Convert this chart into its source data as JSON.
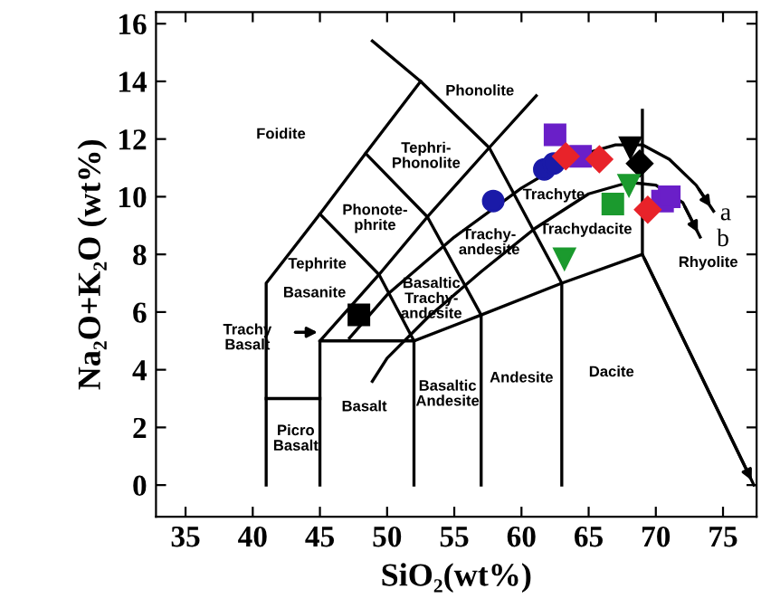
{
  "chart_data": {
    "type": "scatter",
    "xlabel": "SiO₂(wt%)",
    "ylabel": "Na₂O+K₂O (wt%)",
    "xlim": [
      32.8,
      77.5
    ],
    "ylim": [
      -1.1,
      16.4
    ],
    "xticks": [
      35,
      40,
      45,
      50,
      55,
      60,
      65,
      70,
      75
    ],
    "yticks": [
      0,
      2,
      4,
      6,
      8,
      10,
      12,
      14,
      16
    ],
    "grid": false,
    "legend": false,
    "series": [
      {
        "type": "line",
        "color": "#000000",
        "marker": "none",
        "x": [
          41,
          41,
          45,
          48.4,
          52.5
        ],
        "values": [
          0,
          7,
          9.4,
          11.5,
          14
        ]
      },
      {
        "type": "line",
        "color": "#000000",
        "marker": "none",
        "x": [
          48.9,
          52.5,
          57.6,
          63,
          63
        ],
        "values": [
          15.4,
          14,
          11.7,
          7,
          0
        ]
      },
      {
        "type": "line",
        "color": "#000000",
        "marker": "none",
        "x": [
          41,
          45
        ],
        "values": [
          3,
          3
        ]
      },
      {
        "type": "line",
        "color": "#000000",
        "marker": "none",
        "x": [
          45,
          45,
          52,
          52
        ],
        "values": [
          0,
          5,
          5,
          0
        ]
      },
      {
        "type": "line",
        "color": "#000000",
        "marker": "none",
        "x": [
          52,
          57,
          63,
          69,
          77.3
        ],
        "values": [
          5,
          5.9,
          7,
          8,
          0
        ]
      },
      {
        "type": "line",
        "color": "#000000",
        "marker": "none",
        "x": [
          57,
          57
        ],
        "values": [
          0,
          5.9
        ]
      },
      {
        "type": "line",
        "color": "#000000",
        "marker": "none",
        "x": [
          69,
          69
        ],
        "values": [
          8,
          13
        ]
      },
      {
        "type": "line",
        "color": "#000000",
        "marker": "none",
        "x": [
          45,
          49.4,
          53,
          57.6,
          61.1
        ],
        "values": [
          5,
          7.3,
          9.3,
          11.7,
          13.5
        ]
      },
      {
        "type": "line",
        "color": "#000000",
        "marker": "none",
        "x": [
          52,
          49.4,
          45
        ],
        "values": [
          5,
          7.3,
          9.4
        ]
      },
      {
        "type": "line",
        "color": "#000000",
        "marker": "none",
        "x": [
          57,
          53,
          48.4
        ],
        "values": [
          5.9,
          9.3,
          11.5
        ]
      },
      {
        "type": "line",
        "color": "#000000",
        "marker": "none",
        "x": [
          47.2,
          50,
          55,
          60,
          64,
          67,
          69,
          71,
          73,
          74.3
        ],
        "values": [
          5.1,
          6.6,
          8.6,
          10.3,
          11.4,
          11.8,
          11.8,
          11.3,
          10.4,
          9.5
        ]
      },
      {
        "type": "line",
        "color": "#000000",
        "marker": "none",
        "x": [
          48.9,
          50,
          53,
          57,
          61,
          65,
          68,
          70,
          72,
          73.3
        ],
        "values": [
          3.6,
          4.4,
          5.8,
          7.4,
          8.9,
          10.1,
          10.5,
          10.4,
          9.8,
          8.6
        ]
      },
      {
        "color": "#000000",
        "marker": "square",
        "x": [
          47.9
        ],
        "values": [
          5.9
        ]
      },
      {
        "color": "#1a1aa8",
        "marker": "circle",
        "x": [
          57.9,
          61.7,
          62.4
        ],
        "values": [
          9.85,
          10.95,
          11.15
        ]
      },
      {
        "color": "#6a1fc8",
        "marker": "square",
        "x": [
          62.5,
          64.4,
          70.5,
          71.0
        ],
        "values": [
          12.15,
          11.4,
          9.85,
          10.0
        ]
      },
      {
        "color": "#e8232a",
        "marker": "diamond",
        "x": [
          63.3,
          65.8,
          69.4
        ],
        "values": [
          11.4,
          11.3,
          9.55
        ]
      },
      {
        "color": "#000000",
        "marker": "triangle",
        "x": [
          68.1
        ],
        "values": [
          11.7
        ]
      },
      {
        "color": "#000000",
        "marker": "diamond",
        "x": [
          68.8
        ],
        "values": [
          11.15
        ]
      },
      {
        "color": "#1b9a2e",
        "marker": "triangle",
        "x": [
          68.0,
          63.2
        ],
        "values": [
          10.4,
          7.85
        ]
      },
      {
        "color": "#1b9a2e",
        "marker": "square",
        "x": [
          66.8
        ],
        "values": [
          9.75
        ]
      }
    ],
    "annotations": [
      "Foidite",
      "Phonolite",
      "Tephri-\nPhonolite",
      "Phonote-\nphrite",
      "Tephrite",
      "Basanite",
      "Trachy\nBasalt",
      "Basaltic\nTrachy-\nandesite",
      "Trachy-\nandesite",
      "Trachyte",
      "Trachydacite",
      "Basalt",
      "Basaltic\nAndesite",
      "Andesite",
      "Dacite",
      "Picro\nBasalt",
      "Rhyolite",
      "a",
      "b"
    ]
  }
}
